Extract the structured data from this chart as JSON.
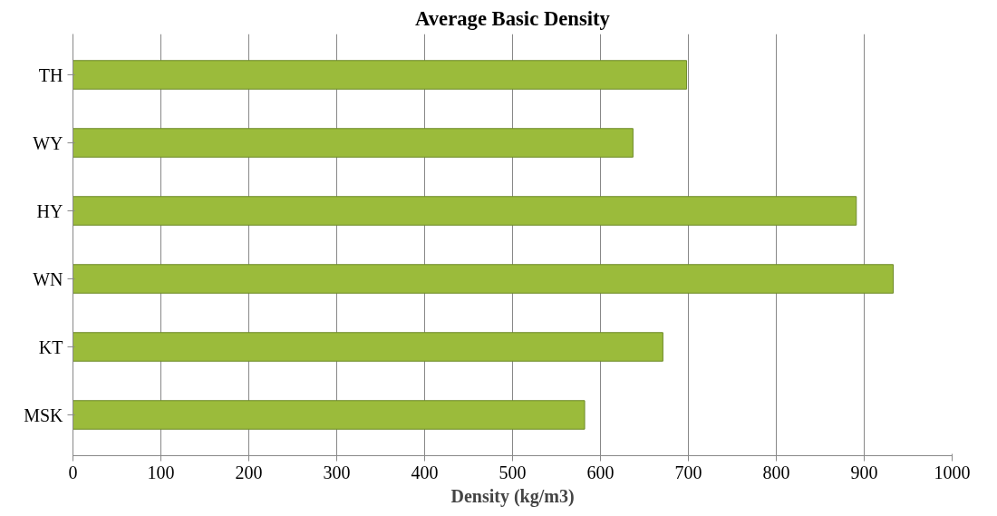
{
  "chart_data": {
    "type": "bar",
    "orientation": "horizontal",
    "title": "Average Basic Density",
    "xlabel": "Density (kg/m3)",
    "categories": [
      "TH",
      "WY",
      "HY",
      "WN",
      "KT",
      "MSK"
    ],
    "values": [
      698,
      637,
      891,
      933,
      671,
      582
    ],
    "color": "#9bbb3b",
    "xlim": [
      0,
      1000
    ],
    "xticks": [
      0,
      100,
      200,
      300,
      400,
      500,
      600,
      700,
      800,
      900,
      1000
    ],
    "grid": "x"
  }
}
